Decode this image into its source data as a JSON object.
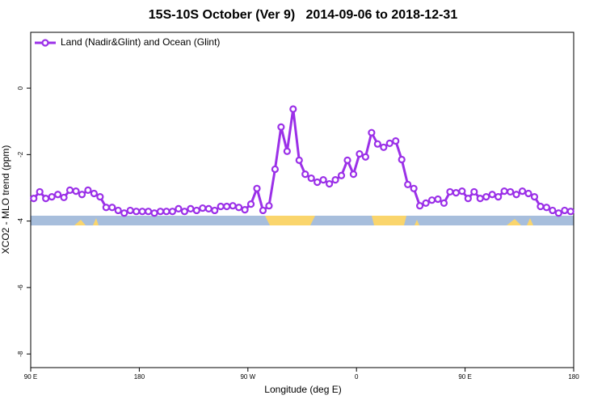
{
  "chart_data": {
    "type": "line",
    "title": "15S-10S October (Ver 9)   2014-09-06 to 2018-12-31",
    "x_label": "Longitude (deg E)",
    "y_label": "XCO2 - MLO trend (ppm)",
    "xlim": [
      90,
      540
    ],
    "xticks": [
      {
        "value": 90,
        "label": "90 E"
      },
      {
        "value": 180,
        "label": "180"
      },
      {
        "value": 270,
        "label": "90 W"
      },
      {
        "value": 360,
        "label": "0"
      },
      {
        "value": 450,
        "label": "90 E"
      },
      {
        "value": 540,
        "label": "180"
      }
    ],
    "ylim": [
      -8.41,
      1.68
    ],
    "yticks": [
      0,
      -2,
      -4,
      -6,
      -8
    ],
    "legend": "top-left",
    "x": [
      92.5,
      97.5,
      102.5,
      107.5,
      112.5,
      117.5,
      122.5,
      127.5,
      132.5,
      137.5,
      142.5,
      147.5,
      152.5,
      157.5,
      162.5,
      167.5,
      172.5,
      177.5,
      182.5,
      187.5,
      192.5,
      197.5,
      202.5,
      207.5,
      212.5,
      217.5,
      222.5,
      227.5,
      232.5,
      237.5,
      242.5,
      247.5,
      252.5,
      257.5,
      262.5,
      267.5,
      272.5,
      277.5,
      282.5,
      287.5,
      292.5,
      297.5,
      302.5,
      307.5,
      312.5,
      317.5,
      322.5,
      327.5,
      332.5,
      337.5,
      342.5,
      347.5,
      352.5,
      357.5,
      362.5,
      367.5,
      372.5,
      377.5,
      382.5,
      387.5,
      392.5,
      397.5,
      402.5,
      407.5,
      412.5,
      417.5,
      422.5,
      427.5,
      432.5,
      437.5,
      442.5,
      447.5,
      452.5,
      457.5,
      462.5,
      467.5,
      472.5,
      477.5,
      482.5,
      487.5,
      492.5,
      497.5,
      502.5,
      507.5,
      512.5,
      517.5,
      522.5,
      527.5,
      532.5,
      537.5
    ],
    "series": [
      {
        "name": "Land (Nadir&Glint) and Ocean (Glint)",
        "color": "#9b30e8",
        "values": [
          -3.32,
          -3.12,
          -3.32,
          -3.27,
          -3.2,
          -3.29,
          -3.07,
          -3.1,
          -3.2,
          -3.07,
          -3.17,
          -3.27,
          -3.59,
          -3.59,
          -3.68,
          -3.76,
          -3.68,
          -3.71,
          -3.71,
          -3.71,
          -3.76,
          -3.71,
          -3.71,
          -3.71,
          -3.63,
          -3.71,
          -3.63,
          -3.68,
          -3.61,
          -3.63,
          -3.68,
          -3.56,
          -3.56,
          -3.54,
          -3.59,
          -3.66,
          -3.49,
          -3.02,
          -3.68,
          -3.54,
          -2.44,
          -1.17,
          -1.9,
          -0.63,
          -2.17,
          -2.59,
          -2.71,
          -2.83,
          -2.76,
          -2.88,
          -2.76,
          -2.63,
          -2.17,
          -2.59,
          -1.98,
          -2.07,
          -1.34,
          -1.68,
          -1.78,
          -1.66,
          -1.59,
          -2.15,
          -2.9,
          -3.02,
          -3.54,
          -3.46,
          -3.37,
          -3.34,
          -3.46,
          -3.12,
          -3.15,
          -3.1,
          -3.32,
          -3.12,
          -3.32,
          -3.27,
          -3.2,
          -3.27,
          -3.1,
          -3.12,
          -3.2,
          -3.1,
          -3.17,
          -3.27,
          -3.56,
          -3.59,
          -3.68,
          -3.76,
          -3.68,
          -3.71
        ]
      }
    ]
  }
}
